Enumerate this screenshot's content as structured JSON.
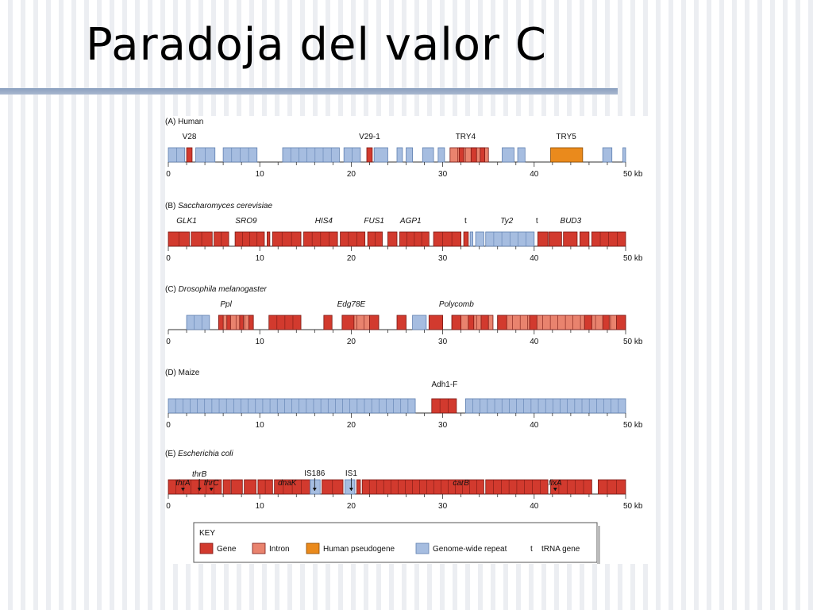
{
  "slide": {
    "title": "Paradoja del valor C"
  },
  "colors": {
    "gene": "#d23a2e",
    "intron": "#e9836e",
    "pseudogene": "#ea8a1c",
    "repeat": "#a6bde0",
    "gene_stroke": "#7a1a14",
    "repeat_stroke": "#5f7fb0"
  },
  "axis": {
    "ticks": [
      "0",
      "10",
      "20",
      "30",
      "40"
    ],
    "end_label": "50 kb"
  },
  "panels": [
    {
      "id": "human",
      "letter": "(A)",
      "organism": "Human",
      "organism_italic": false,
      "labels": [
        {
          "text": "V28",
          "at": 2.3,
          "italic": false
        },
        {
          "text": "V29-1",
          "at": 22,
          "italic": false
        },
        {
          "text": "TRY4",
          "at": 32.5,
          "italic": false
        },
        {
          "text": "TRY5",
          "at": 43.5,
          "italic": false
        }
      ],
      "blocks": [
        {
          "type": "repeat",
          "start": 0,
          "end": 1.8
        },
        {
          "type": "gene",
          "start": 2.0,
          "end": 2.6
        },
        {
          "type": "repeat",
          "start": 3.0,
          "end": 5.1
        },
        {
          "type": "repeat",
          "start": 6.0,
          "end": 9.7
        },
        {
          "type": "repeat",
          "start": 12.5,
          "end": 18.7
        },
        {
          "type": "repeat",
          "start": 19.2,
          "end": 21.0
        },
        {
          "type": "gene",
          "start": 21.7,
          "end": 22.3
        },
        {
          "type": "repeat",
          "start": 22.5,
          "end": 24.0
        },
        {
          "type": "repeat",
          "start": 25.0,
          "end": 25.6
        },
        {
          "type": "repeat",
          "start": 26.0,
          "end": 26.7
        },
        {
          "type": "repeat",
          "start": 27.8,
          "end": 29.0
        },
        {
          "type": "repeat",
          "start": 29.5,
          "end": 30.2
        },
        {
          "type": "intron",
          "start": 30.8,
          "end": 35.0
        },
        {
          "type": "gene",
          "start": 31.8,
          "end": 32.3
        },
        {
          "type": "gene",
          "start": 33.1,
          "end": 33.7
        },
        {
          "type": "gene",
          "start": 34.1,
          "end": 34.6
        },
        {
          "type": "repeat",
          "start": 36.5,
          "end": 37.8
        },
        {
          "type": "repeat",
          "start": 38.2,
          "end": 39.0
        },
        {
          "type": "pseudogene",
          "start": 41.8,
          "end": 45.3
        },
        {
          "type": "repeat",
          "start": 47.5,
          "end": 48.5
        },
        {
          "type": "repeat",
          "start": 49.7,
          "end": 50.0
        }
      ]
    },
    {
      "id": "yeast",
      "letter": "(B)",
      "organism": "Saccharomyces cerevisiae",
      "organism_italic": true,
      "labels": [
        {
          "text": "GLK1",
          "at": 2.0,
          "italic": true
        },
        {
          "text": "SRO9",
          "at": 8.5,
          "italic": true
        },
        {
          "text": "HIS4",
          "at": 17.0,
          "italic": true
        },
        {
          "text": "FUS1",
          "at": 22.5,
          "italic": true
        },
        {
          "text": "AGP1",
          "at": 26.5,
          "italic": true
        },
        {
          "text": "t",
          "at": 32.5,
          "italic": false
        },
        {
          "text": "Ty2",
          "at": 37.0,
          "italic": true
        },
        {
          "text": "t",
          "at": 40.3,
          "italic": false
        },
        {
          "text": "BUD3",
          "at": 44.0,
          "italic": true
        }
      ],
      "blocks": [
        {
          "type": "gene",
          "start": 0,
          "end": 2.3
        },
        {
          "type": "gene",
          "start": 2.5,
          "end": 4.8
        },
        {
          "type": "gene",
          "start": 5.0,
          "end": 6.6
        },
        {
          "type": "gene",
          "start": 7.3,
          "end": 10.5
        },
        {
          "type": "gene",
          "start": 10.8,
          "end": 11.1
        },
        {
          "type": "gene",
          "start": 11.4,
          "end": 14.5
        },
        {
          "type": "gene",
          "start": 14.8,
          "end": 18.5
        },
        {
          "type": "gene",
          "start": 18.8,
          "end": 21.5
        },
        {
          "type": "gene",
          "start": 21.8,
          "end": 23.4
        },
        {
          "type": "gene",
          "start": 24.0,
          "end": 25.0
        },
        {
          "type": "gene",
          "start": 25.3,
          "end": 28.5
        },
        {
          "type": "gene",
          "start": 29.0,
          "end": 32.0
        },
        {
          "type": "gene",
          "start": 32.3,
          "end": 32.8
        },
        {
          "type": "repeat",
          "start": 33.0,
          "end": 33.3
        },
        {
          "type": "repeat",
          "start": 33.6,
          "end": 34.5
        },
        {
          "type": "repeat",
          "start": 34.7,
          "end": 40.0
        },
        {
          "type": "gene",
          "start": 40.4,
          "end": 41.5
        },
        {
          "type": "gene",
          "start": 41.6,
          "end": 43.0
        },
        {
          "type": "gene",
          "start": 43.2,
          "end": 44.7
        },
        {
          "type": "gene",
          "start": 45.0,
          "end": 46.0
        },
        {
          "type": "gene",
          "start": 46.3,
          "end": 50.0
        }
      ]
    },
    {
      "id": "drosophila",
      "letter": "(C)",
      "organism": "Drosophila melanogaster",
      "organism_italic": true,
      "labels": [
        {
          "text": "Ppl",
          "at": 6.3,
          "italic": true
        },
        {
          "text": "Edg78E",
          "at": 20.0,
          "italic": true
        },
        {
          "text": "Polycomb",
          "at": 31.5,
          "italic": true
        }
      ],
      "blocks": [
        {
          "type": "repeat",
          "start": 2.0,
          "end": 4.5
        },
        {
          "type": "intron",
          "start": 5.5,
          "end": 9.3
        },
        {
          "type": "gene",
          "start": 5.5,
          "end": 6.0
        },
        {
          "type": "gene",
          "start": 6.4,
          "end": 6.8
        },
        {
          "type": "gene",
          "start": 7.8,
          "end": 8.2
        },
        {
          "type": "gene",
          "start": 8.8,
          "end": 9.3
        },
        {
          "type": "gene",
          "start": 11.0,
          "end": 14.5
        },
        {
          "type": "gene",
          "start": 17.0,
          "end": 17.9
        },
        {
          "type": "intron",
          "start": 19.0,
          "end": 23.0
        },
        {
          "type": "gene",
          "start": 19.0,
          "end": 20.3
        },
        {
          "type": "gene",
          "start": 22.0,
          "end": 23.0
        },
        {
          "type": "gene",
          "start": 25.0,
          "end": 26.0
        },
        {
          "type": "repeat",
          "start": 26.7,
          "end": 28.2
        },
        {
          "type": "gene",
          "start": 28.5,
          "end": 30.0
        },
        {
          "type": "intron",
          "start": 31.0,
          "end": 35.5
        },
        {
          "type": "gene",
          "start": 31.0,
          "end": 32.0
        },
        {
          "type": "gene",
          "start": 32.8,
          "end": 33.4
        },
        {
          "type": "gene",
          "start": 34.2,
          "end": 35.0
        },
        {
          "type": "intron",
          "start": 36.0,
          "end": 50.0
        },
        {
          "type": "gene",
          "start": 36.0,
          "end": 37.0
        },
        {
          "type": "gene",
          "start": 39.5,
          "end": 40.3
        },
        {
          "type": "gene",
          "start": 45.5,
          "end": 46.3
        },
        {
          "type": "gene",
          "start": 47.5,
          "end": 48.2
        },
        {
          "type": "gene",
          "start": 49.0,
          "end": 50.0
        }
      ]
    },
    {
      "id": "maize",
      "letter": "(D)",
      "organism": "Maize",
      "organism_italic": false,
      "labels": [
        {
          "text": "Adh1-F",
          "at": 30.2,
          "italic": false
        }
      ],
      "blocks": [
        {
          "type": "repeat",
          "start": 0,
          "end": 27.0
        },
        {
          "type": "gene",
          "start": 28.8,
          "end": 31.5
        },
        {
          "type": "repeat",
          "start": 32.5,
          "end": 50.0
        }
      ]
    },
    {
      "id": "ecoli",
      "letter": "(E)",
      "organism": "Escherichia coli",
      "organism_italic": true,
      "labels": [
        {
          "text": "thrA",
          "at": 1.6,
          "italic": true,
          "arrow": true,
          "row": 2
        },
        {
          "text": "thrB",
          "at": 3.4,
          "italic": true,
          "arrow": true,
          "row": 1
        },
        {
          "text": "thrC",
          "at": 4.7,
          "italic": true,
          "arrow": true,
          "row": 2
        },
        {
          "text": "dnaK",
          "at": 13.0,
          "italic": true
        },
        {
          "text": "IS186",
          "at": 16.0,
          "italic": false,
          "arrow": true,
          "row": 0
        },
        {
          "text": "IS1",
          "at": 20.0,
          "italic": false,
          "arrow": true,
          "row": 0
        },
        {
          "text": "carB",
          "at": 32.0,
          "italic": true
        },
        {
          "text": "fixA",
          "at": 42.3,
          "italic": true,
          "arrow": true,
          "row": 2
        }
      ],
      "blocks": [
        {
          "type": "gene",
          "start": 0,
          "end": 5.8
        },
        {
          "type": "gene",
          "start": 6.0,
          "end": 6.8
        },
        {
          "type": "gene",
          "start": 6.9,
          "end": 8.1
        },
        {
          "type": "gene",
          "start": 8.3,
          "end": 9.6
        },
        {
          "type": "gene",
          "start": 9.8,
          "end": 11.4
        },
        {
          "type": "gene",
          "start": 11.6,
          "end": 15.5
        },
        {
          "type": "repeat",
          "start": 15.5,
          "end": 16.6
        },
        {
          "type": "gene",
          "start": 16.8,
          "end": 19.1
        },
        {
          "type": "repeat",
          "start": 19.3,
          "end": 20.4
        },
        {
          "type": "gene",
          "start": 20.6,
          "end": 21.0
        },
        {
          "type": "gene",
          "start": 21.2,
          "end": 34.5
        },
        {
          "type": "gene",
          "start": 34.7,
          "end": 41.5
        },
        {
          "type": "gene",
          "start": 41.8,
          "end": 46.3
        },
        {
          "type": "gene",
          "start": 47.0,
          "end": 50.0
        }
      ]
    }
  ],
  "key": {
    "title": "KEY",
    "items": [
      {
        "type": "gene",
        "label": "Gene"
      },
      {
        "type": "intron",
        "label": "Intron"
      },
      {
        "type": "pseudogene",
        "label": "Human pseudogene"
      },
      {
        "type": "repeat",
        "label": "Genome-wide repeat"
      },
      {
        "type": "trna",
        "symbol": "t",
        "label": "tRNA gene"
      }
    ]
  }
}
